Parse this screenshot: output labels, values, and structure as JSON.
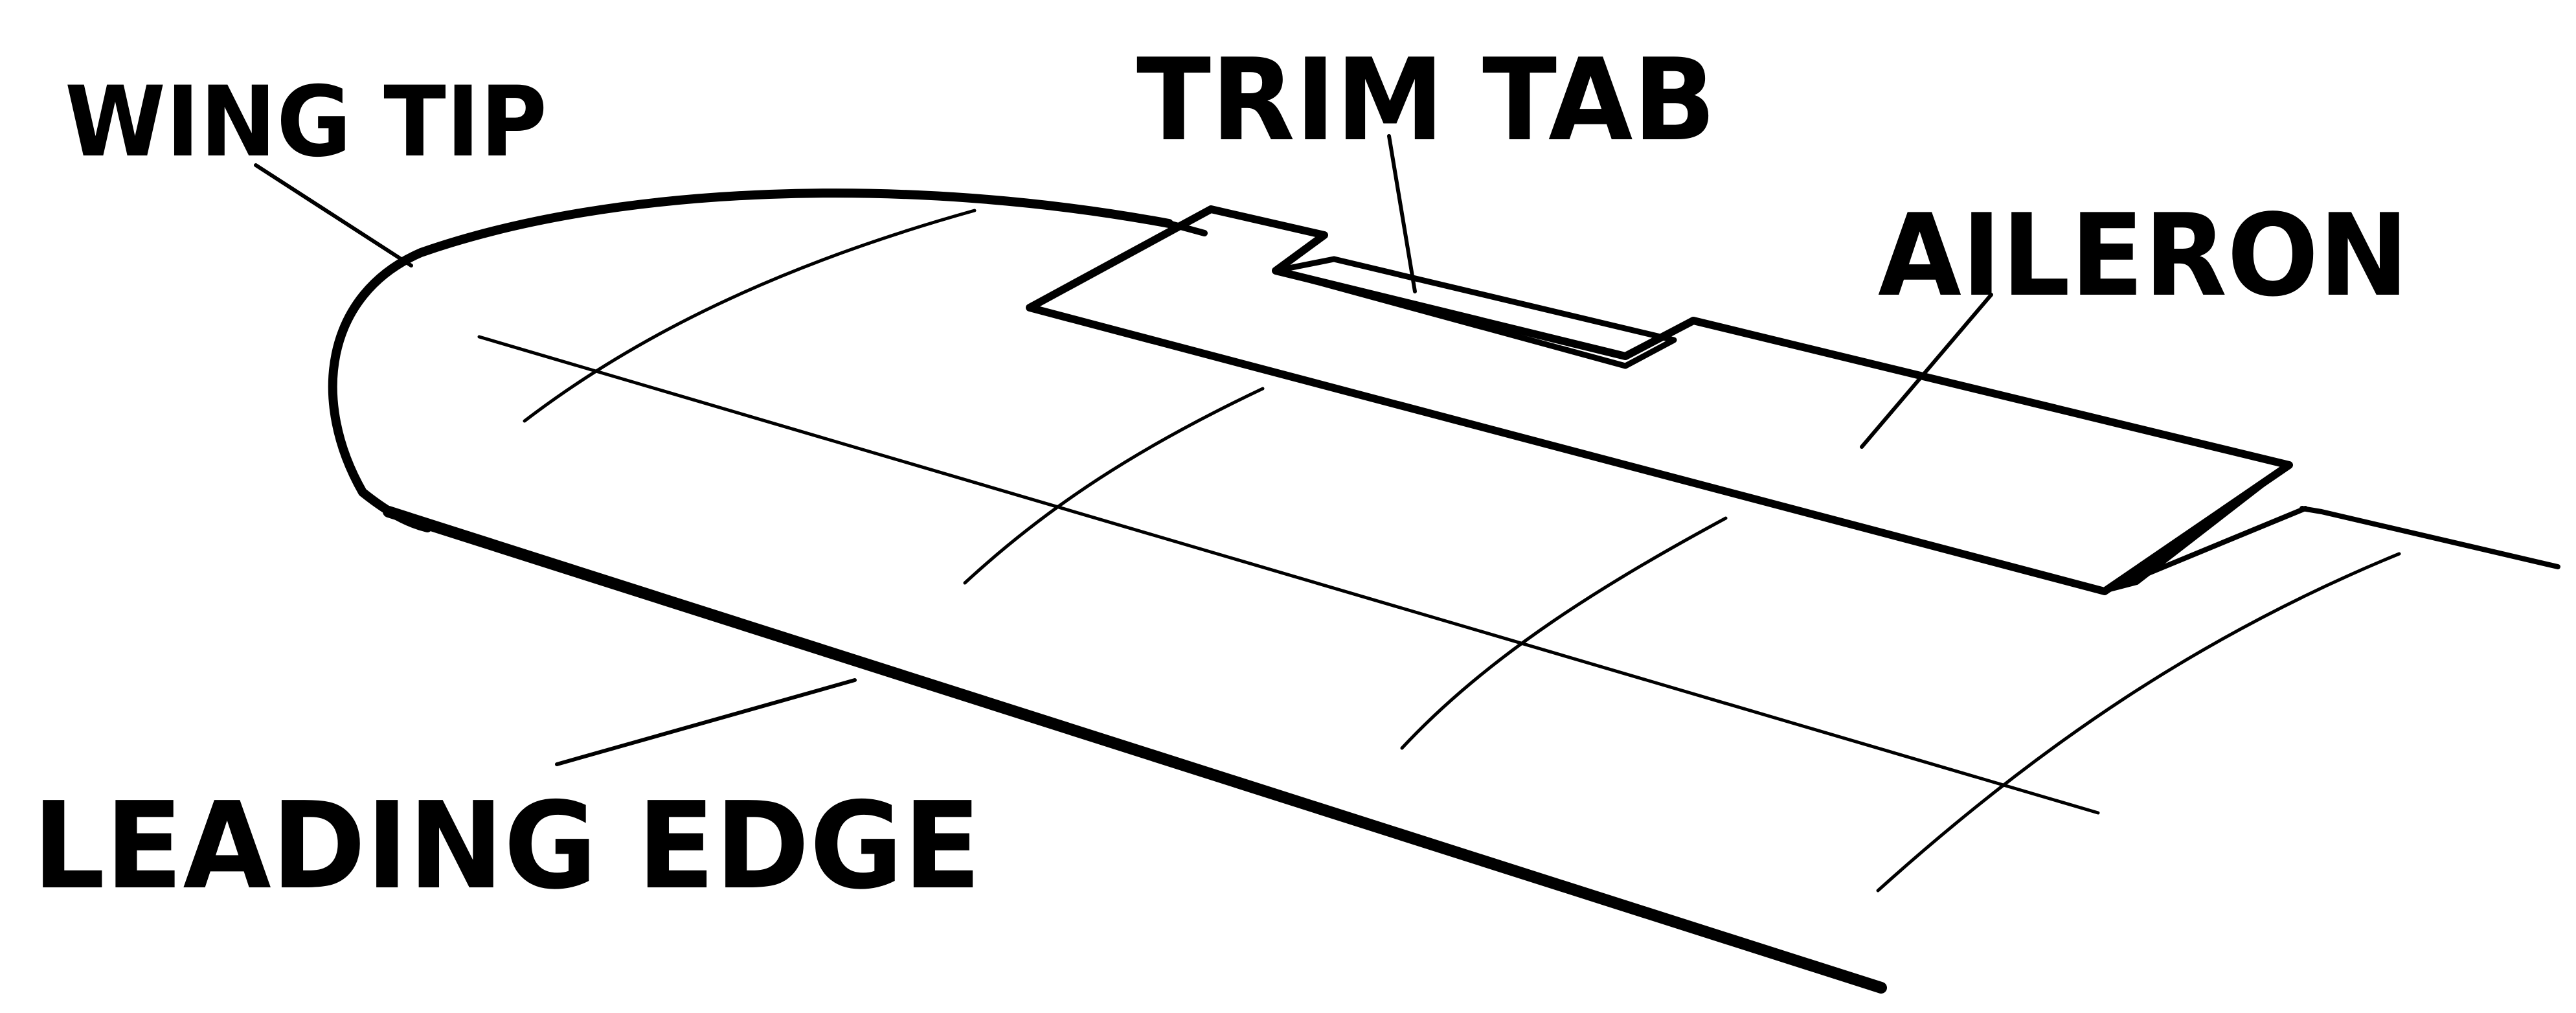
{
  "diagram": {
    "labels": {
      "wing_tip": "WING TIP",
      "trim_tab": "TRIM TAB",
      "aileron": "AILERON",
      "leading_edge": "LEADING EDGE"
    },
    "colors": {
      "ink": "#000000",
      "background": "#ffffff"
    }
  }
}
